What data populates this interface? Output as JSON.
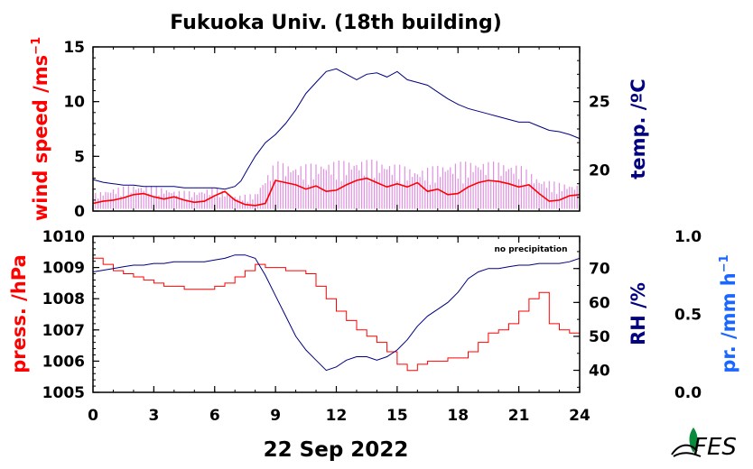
{
  "title": "Fukuoka Univ. (18th building)",
  "date_label": "22 Sep 2022",
  "logo_text": "FES",
  "colors": {
    "red": "#ff0000",
    "navy": "#000080",
    "blue": "#1a66ff",
    "pink": "#e090e0",
    "logo": "#0a8a3a"
  },
  "chart_data": [
    {
      "type": "line",
      "panel": "top",
      "xlim": [
        0,
        24
      ],
      "x_ticks": [
        "0",
        "3",
        "6",
        "9",
        "12",
        "15",
        "18",
        "21",
        "24"
      ],
      "left_axis": {
        "label": "wind speed /ms",
        "label_superscript": "−1",
        "ylim": [
          0,
          15
        ],
        "ticks": [
          "0",
          "5",
          "10",
          "15"
        ],
        "color": "#ff0000"
      },
      "right_axis": {
        "label": "temp. /ºC",
        "ylim": [
          17,
          29
        ],
        "ticks": [
          "20",
          "25"
        ],
        "color": "#000080"
      },
      "series": [
        {
          "axis": "left",
          "style": "gust",
          "color": "#e090e0",
          "x": [
            0,
            1,
            2,
            3,
            4,
            5,
            6,
            7,
            8,
            9,
            10,
            11,
            12,
            13,
            14,
            15,
            16,
            17,
            18,
            19,
            20,
            21,
            22,
            23,
            24
          ],
          "y": [
            1.6,
            2.1,
            2.4,
            2.3,
            1.9,
            1.8,
            2.2,
            1.4,
            1.6,
            4.6,
            4.2,
            4.4,
            4.6,
            4.7,
            4.7,
            4.3,
            3.8,
            4.2,
            4.5,
            4.6,
            4.5,
            4.3,
            3.0,
            2.6,
            2.4
          ]
        },
        {
          "axis": "left",
          "style": "mean",
          "color": "#ff0000",
          "x": [
            0,
            0.5,
            1,
            1.5,
            2,
            2.5,
            3,
            3.5,
            4,
            4.5,
            5,
            5.5,
            6,
            6.5,
            7,
            7.5,
            8,
            8.5,
            9,
            9.5,
            10,
            10.5,
            11,
            11.5,
            12,
            12.5,
            13,
            13.5,
            14,
            14.5,
            15,
            15.5,
            16,
            16.5,
            17,
            17.5,
            18,
            18.5,
            19,
            19.5,
            20,
            20.5,
            21,
            21.5,
            22,
            22.5,
            23,
            23.5,
            24
          ],
          "y": [
            0.7,
            0.9,
            1.0,
            1.2,
            1.5,
            1.6,
            1.3,
            1.1,
            1.3,
            1.0,
            0.8,
            0.9,
            1.4,
            1.8,
            1.0,
            0.6,
            0.5,
            0.7,
            2.8,
            2.6,
            2.4,
            2.0,
            2.3,
            1.8,
            1.9,
            2.4,
            2.8,
            3.0,
            2.6,
            2.2,
            2.5,
            2.2,
            2.6,
            1.8,
            2.0,
            1.5,
            1.6,
            2.2,
            2.6,
            2.8,
            2.7,
            2.5,
            2.2,
            2.4,
            1.6,
            0.9,
            1.0,
            1.4,
            1.5
          ]
        },
        {
          "axis": "right",
          "name": "temperature",
          "color": "#000080",
          "x": [
            0,
            0.5,
            1,
            1.5,
            2,
            2.5,
            3,
            3.5,
            4,
            4.5,
            5,
            5.5,
            6,
            6.5,
            7,
            7.3,
            7.6,
            8,
            8.5,
            9,
            9.5,
            10,
            10.5,
            11,
            11.5,
            12,
            12.5,
            13,
            13.5,
            14,
            14.5,
            15,
            15.5,
            16,
            16.5,
            17,
            17.5,
            18,
            18.5,
            19,
            19.5,
            20,
            20.5,
            21,
            21.5,
            22,
            22.5,
            23,
            23.5,
            24
          ],
          "y": [
            19.3,
            19.1,
            19.0,
            18.9,
            18.9,
            18.8,
            18.8,
            18.8,
            18.8,
            18.7,
            18.7,
            18.7,
            18.7,
            18.6,
            18.8,
            19.2,
            20.0,
            21.0,
            22.0,
            22.6,
            23.4,
            24.4,
            25.6,
            26.4,
            27.2,
            27.4,
            27.0,
            26.6,
            27.0,
            27.1,
            26.8,
            27.2,
            26.6,
            26.4,
            26.2,
            25.7,
            25.2,
            24.8,
            24.5,
            24.3,
            24.1,
            23.9,
            23.7,
            23.5,
            23.5,
            23.2,
            22.9,
            22.8,
            22.6,
            22.3
          ]
        }
      ]
    },
    {
      "type": "line",
      "panel": "bottom",
      "xlim": [
        0,
        24
      ],
      "x_ticks": [
        "0",
        "3",
        "6",
        "9",
        "12",
        "15",
        "18",
        "21",
        "24"
      ],
      "xlabel": "22 Sep 2022",
      "annotation": "no precipitation",
      "left_axis": {
        "label": "press. /hPa",
        "ylim": [
          1005,
          1010
        ],
        "ticks": [
          "1005",
          "1006",
          "1007",
          "1008",
          "1009",
          "1010"
        ],
        "color": "#ff0000"
      },
      "right_axis": {
        "label": "RH /%",
        "ylim": [
          33.5,
          79.5
        ],
        "ticks": [
          "40",
          "50",
          "60",
          "70"
        ],
        "color": "#000080"
      },
      "far_right_axis": {
        "label": "pr. /mm h",
        "label_superscript": "−1",
        "ylim": [
          0,
          1
        ],
        "ticks": [
          "0.0",
          "0.5",
          "1.0"
        ],
        "color": "#1a66ff"
      },
      "series": [
        {
          "axis": "left",
          "name": "pressure",
          "color": "#ff0000",
          "step": true,
          "x": [
            0,
            0.5,
            1,
            1.5,
            2,
            2.5,
            3,
            3.5,
            4,
            4.5,
            5,
            5.5,
            6,
            6.5,
            7,
            7.5,
            8,
            8.5,
            9,
            9.5,
            10,
            10.5,
            11,
            11.5,
            12,
            12.5,
            13,
            13.5,
            14,
            14.5,
            15,
            15.5,
            16,
            16.5,
            17,
            17.5,
            18,
            18.5,
            19,
            19.5,
            20,
            20.5,
            21,
            21.5,
            22,
            22.5,
            23,
            23.5,
            24
          ],
          "y": [
            1009.3,
            1009.1,
            1008.9,
            1008.8,
            1008.7,
            1008.6,
            1008.5,
            1008.4,
            1008.4,
            1008.3,
            1008.3,
            1008.3,
            1008.4,
            1008.5,
            1008.7,
            1008.9,
            1009.1,
            1009.0,
            1009.0,
            1008.9,
            1008.9,
            1008.8,
            1008.4,
            1008.0,
            1007.6,
            1007.3,
            1007.0,
            1006.8,
            1006.6,
            1006.3,
            1005.9,
            1005.7,
            1005.9,
            1006.0,
            1006.0,
            1006.1,
            1006.1,
            1006.3,
            1006.6,
            1006.9,
            1007.0,
            1007.2,
            1007.6,
            1008.0,
            1008.2,
            1007.2,
            1007.0,
            1006.9,
            1006.8
          ]
        },
        {
          "axis": "right",
          "name": "relative humidity",
          "color": "#000080",
          "x": [
            0,
            0.5,
            1,
            1.5,
            2,
            2.5,
            3,
            3.5,
            4,
            4.5,
            5,
            5.5,
            6,
            6.5,
            7,
            7.5,
            8,
            8.5,
            9,
            9.5,
            10,
            10.5,
            11,
            11.5,
            12,
            12.5,
            13,
            13.5,
            14,
            14.5,
            15,
            15.5,
            16,
            16.5,
            17,
            17.5,
            18,
            18.5,
            19,
            19.5,
            20,
            20.5,
            21,
            21.5,
            22,
            22.5,
            23,
            23.5,
            24
          ],
          "y": [
            69,
            69.5,
            70,
            70.5,
            71,
            71,
            71.5,
            71.5,
            72,
            72,
            72,
            72,
            72.5,
            73,
            74,
            74,
            73,
            68,
            62,
            56,
            50,
            46,
            43,
            40,
            41,
            43,
            44,
            44,
            43,
            44,
            46,
            49,
            53,
            56,
            58,
            60,
            63,
            67,
            69,
            70,
            70,
            70.5,
            71,
            71,
            71.5,
            71.5,
            71.5,
            72,
            73
          ]
        }
      ]
    }
  ]
}
